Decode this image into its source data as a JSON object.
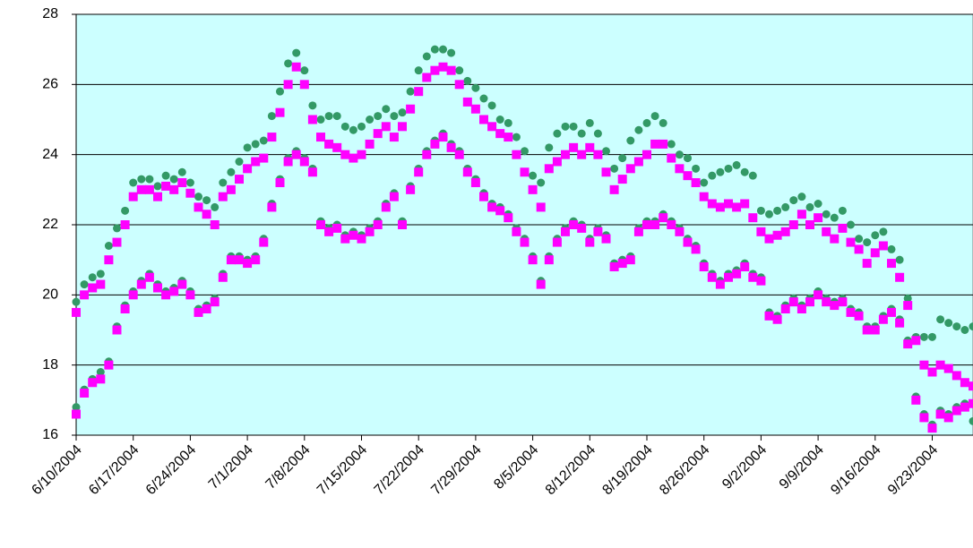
{
  "chart_data": {
    "type": "scatter",
    "x": [
      "6/10/2004",
      "6/10/2004",
      "6/11/2004",
      "6/11/2004",
      "6/12/2004",
      "6/12/2004",
      "6/13/2004",
      "6/13/2004",
      "6/14/2004",
      "6/14/2004",
      "6/15/2004",
      "6/15/2004",
      "6/16/2004",
      "6/16/2004",
      "6/17/2004",
      "6/17/2004",
      "6/18/2004",
      "6/18/2004",
      "6/19/2004",
      "6/19/2004",
      "6/20/2004",
      "6/20/2004",
      "6/21/2004",
      "6/21/2004",
      "6/22/2004",
      "6/22/2004",
      "6/23/2004",
      "6/23/2004",
      "6/24/2004",
      "6/24/2004",
      "6/25/2004",
      "6/25/2004",
      "6/26/2004",
      "6/26/2004",
      "6/27/2004",
      "6/27/2004",
      "6/28/2004",
      "6/28/2004",
      "6/29/2004",
      "6/29/2004",
      "6/30/2004",
      "6/30/2004",
      "7/1/2004",
      "7/1/2004",
      "7/2/2004",
      "7/2/2004",
      "7/3/2004",
      "7/3/2004",
      "7/4/2004",
      "7/4/2004",
      "7/5/2004",
      "7/5/2004",
      "7/6/2004",
      "7/6/2004",
      "7/7/2004",
      "7/7/2004",
      "7/8/2004",
      "7/8/2004",
      "7/9/2004",
      "7/9/2004",
      "7/10/2004",
      "7/10/2004",
      "7/11/2004",
      "7/11/2004",
      "7/12/2004",
      "7/12/2004",
      "7/13/2004",
      "7/13/2004",
      "7/14/2004",
      "7/14/2004",
      "7/15/2004",
      "7/15/2004",
      "7/16/2004",
      "7/16/2004",
      "7/17/2004",
      "7/17/2004",
      "7/18/2004",
      "7/18/2004",
      "7/19/2004",
      "7/19/2004",
      "7/20/2004",
      "7/20/2004",
      "7/21/2004",
      "7/21/2004",
      "7/22/2004",
      "7/22/2004",
      "7/23/2004",
      "7/23/2004",
      "7/24/2004",
      "7/24/2004",
      "7/25/2004",
      "7/25/2004",
      "7/26/2004",
      "7/26/2004",
      "7/27/2004",
      "7/27/2004",
      "7/28/2004",
      "7/28/2004",
      "7/29/2004",
      "7/29/2004",
      "7/30/2004",
      "7/30/2004",
      "7/31/2004",
      "7/31/2004",
      "8/1/2004",
      "8/1/2004",
      "8/2/2004",
      "8/2/2004",
      "8/3/2004",
      "8/3/2004",
      "8/4/2004",
      "8/4/2004",
      "8/5/2004",
      "8/5/2004",
      "8/6/2004",
      "8/6/2004",
      "8/7/2004",
      "8/7/2004",
      "8/8/2004",
      "8/8/2004",
      "8/9/2004",
      "8/9/2004",
      "8/10/2004",
      "8/10/2004",
      "8/11/2004",
      "8/11/2004",
      "8/12/2004",
      "8/12/2004",
      "8/13/2004",
      "8/13/2004",
      "8/14/2004",
      "8/14/2004",
      "8/15/2004",
      "8/15/2004",
      "8/16/2004",
      "8/16/2004",
      "8/17/2004",
      "8/17/2004",
      "8/18/2004",
      "8/18/2004",
      "8/19/2004",
      "8/19/2004",
      "8/20/2004",
      "8/20/2004",
      "8/21/2004",
      "8/21/2004",
      "8/22/2004",
      "8/22/2004",
      "8/23/2004",
      "8/23/2004",
      "8/24/2004",
      "8/24/2004",
      "8/25/2004",
      "8/25/2004",
      "8/26/2004",
      "8/26/2004",
      "8/27/2004",
      "8/27/2004",
      "8/28/2004",
      "8/28/2004",
      "8/29/2004",
      "8/29/2004",
      "8/30/2004",
      "8/30/2004",
      "8/31/2004",
      "8/31/2004",
      "9/1/2004",
      "9/1/2004",
      "9/2/2004",
      "9/2/2004",
      "9/3/2004",
      "9/3/2004",
      "9/4/2004",
      "9/4/2004",
      "9/5/2004",
      "9/5/2004",
      "9/6/2004",
      "9/6/2004",
      "9/7/2004",
      "9/7/2004",
      "9/8/2004",
      "9/8/2004",
      "9/9/2004",
      "9/9/2004",
      "9/10/2004",
      "9/10/2004",
      "9/11/2004",
      "9/11/2004",
      "9/12/2004",
      "9/12/2004",
      "9/13/2004",
      "9/13/2004",
      "9/14/2004",
      "9/14/2004",
      "9/15/2004",
      "9/15/2004",
      "9/16/2004",
      "9/16/2004",
      "9/17/2004",
      "9/17/2004",
      "9/18/2004",
      "9/18/2004",
      "9/19/2004",
      "9/19/2004",
      "9/20/2004",
      "9/20/2004",
      "9/21/2004",
      "9/21/2004",
      "9/22/2004",
      "9/22/2004",
      "9/23/2004",
      "9/23/2004",
      "9/24/2004",
      "9/24/2004",
      "9/25/2004",
      "9/25/2004",
      "9/26/2004",
      "9/26/2004",
      "9/27/2004",
      "9/27/2004",
      "9/28/2004",
      "9/28/2004"
    ],
    "series": [
      {
        "color": "#339966",
        "marker": "circle",
        "values": [
          16.8,
          19.8,
          17.3,
          20.3,
          17.6,
          20.5,
          17.8,
          20.6,
          18.1,
          21.4,
          19.1,
          21.9,
          19.7,
          22.4,
          20.1,
          23.2,
          20.4,
          23.3,
          20.6,
          23.3,
          20.3,
          23.1,
          20.1,
          23.4,
          20.2,
          23.3,
          20.4,
          23.5,
          20.1,
          23.2,
          19.6,
          22.8,
          19.7,
          22.7,
          19.9,
          22.5,
          20.6,
          23.2,
          21.1,
          23.5,
          21.1,
          23.8,
          21,
          24.2,
          21.1,
          24.3,
          21.6,
          24.4,
          22.6,
          25.1,
          23.3,
          25.8,
          23.9,
          26.6,
          24.1,
          26.9,
          23.9,
          26.4,
          23.6,
          25.4,
          22.1,
          25,
          21.9,
          25.1,
          22,
          25.1,
          21.7,
          24.8,
          21.8,
          24.7,
          21.7,
          24.8,
          21.9,
          25,
          22.1,
          25.1,
          22.6,
          25.3,
          22.9,
          25.1,
          22.1,
          25.2,
          23.1,
          25.8,
          23.6,
          26.4,
          24.1,
          26.8,
          24.4,
          27,
          24.6,
          27,
          24.3,
          26.9,
          24.1,
          26.4,
          23.6,
          26.1,
          23.3,
          25.9,
          22.9,
          25.6,
          22.6,
          25.4,
          22.5,
          25,
          22.3,
          24.9,
          21.9,
          24.5,
          21.6,
          24.1,
          21.1,
          23.4,
          20.4,
          23.2,
          21.1,
          24.2,
          21.6,
          24.6,
          21.9,
          24.8,
          22.1,
          24.8,
          22,
          24.6,
          21.6,
          24.9,
          21.9,
          24.6,
          21.7,
          24.1,
          20.9,
          23.6,
          21,
          23.9,
          21.1,
          24.4,
          21.9,
          24.7,
          22.1,
          24.9,
          22.1,
          25.1,
          22.3,
          24.9,
          22.1,
          24.3,
          21.9,
          24,
          21.6,
          23.9,
          21.4,
          23.6,
          20.9,
          23.2,
          20.6,
          23.4,
          20.4,
          23.5,
          20.6,
          23.6,
          20.7,
          23.7,
          20.9,
          23.5,
          20.6,
          23.4,
          20.5,
          22.4,
          19.5,
          22.3,
          19.4,
          22.4,
          19.7,
          22.5,
          19.9,
          22.7,
          19.7,
          22.8,
          19.9,
          22.5,
          20.1,
          22.6,
          19.9,
          22.3,
          19.8,
          22.2,
          19.9,
          22.4,
          19.6,
          22,
          19.5,
          21.6,
          19.1,
          21.5,
          19.1,
          21.7,
          19.4,
          21.8,
          19.6,
          21.3,
          19.3,
          21,
          18.7,
          19.9,
          17.1,
          18.8,
          16.6,
          18.8,
          16.3,
          18.8,
          16.7,
          19.3,
          16.6,
          19.2,
          16.8,
          19.1,
          16.9,
          19,
          16.4,
          19.1
        ]
      },
      {
        "color": "#ff00ff",
        "marker": "square",
        "values": [
          16.6,
          19.5,
          17.2,
          20,
          17.5,
          20.2,
          17.6,
          20.3,
          18,
          21,
          19,
          21.5,
          19.6,
          22,
          20,
          22.8,
          20.3,
          23,
          20.5,
          23,
          20.2,
          22.8,
          20,
          23.1,
          20.1,
          23,
          20.3,
          23.2,
          20,
          22.9,
          19.5,
          22.5,
          19.6,
          22.3,
          19.8,
          22,
          20.5,
          22.8,
          21,
          23,
          21,
          23.3,
          20.9,
          23.6,
          21,
          23.8,
          21.5,
          23.9,
          22.5,
          24.5,
          23.2,
          25.2,
          23.8,
          26,
          24,
          26.5,
          23.8,
          26,
          23.5,
          25,
          22,
          24.5,
          21.8,
          24.3,
          21.9,
          24.2,
          21.6,
          24,
          21.7,
          23.9,
          21.6,
          24,
          21.8,
          24.3,
          22,
          24.6,
          22.5,
          24.8,
          22.8,
          24.5,
          22,
          24.8,
          23,
          25.3,
          23.5,
          25.8,
          24,
          26.2,
          24.3,
          26.4,
          24.5,
          26.5,
          24.2,
          26.4,
          24,
          26,
          23.5,
          25.5,
          23.2,
          25.3,
          22.8,
          25,
          22.5,
          24.8,
          22.4,
          24.6,
          22.2,
          24.5,
          21.8,
          24,
          21.5,
          23.5,
          21,
          23,
          20.3,
          22.5,
          21,
          23.6,
          21.5,
          23.8,
          21.8,
          24,
          22,
          24.2,
          21.9,
          24,
          21.5,
          24.2,
          21.8,
          24,
          21.6,
          23.5,
          20.8,
          23,
          20.9,
          23.3,
          21,
          23.6,
          21.8,
          23.8,
          22,
          24,
          22,
          24.3,
          22.2,
          24.3,
          22,
          23.9,
          21.8,
          23.6,
          21.5,
          23.4,
          21.3,
          23.2,
          20.8,
          22.8,
          20.5,
          22.6,
          20.3,
          22.5,
          20.5,
          22.6,
          20.6,
          22.5,
          20.8,
          22.6,
          20.5,
          22.2,
          20.4,
          21.8,
          19.4,
          21.6,
          19.3,
          21.7,
          19.6,
          21.8,
          19.8,
          22,
          19.6,
          22.3,
          19.8,
          22,
          20,
          22.2,
          19.8,
          21.8,
          19.7,
          21.6,
          19.8,
          21.9,
          19.5,
          21.5,
          19.4,
          21.3,
          19,
          20.9,
          19,
          21.2,
          19.3,
          21.4,
          19.5,
          20.9,
          19.2,
          20.5,
          18.6,
          19.7,
          17,
          18.7,
          16.5,
          18,
          16.2,
          17.8,
          16.6,
          18,
          16.5,
          17.9,
          16.7,
          17.7,
          16.8,
          17.5,
          16.9,
          17.4
        ]
      }
    ],
    "xlim": [
      "6/10/2004",
      "9/28/2004"
    ],
    "xticks": [
      "6/10/2004",
      "6/17/2004",
      "6/24/2004",
      "7/1/2004",
      "7/8/2004",
      "7/15/2004",
      "7/22/2004",
      "7/29/2004",
      "8/5/2004",
      "8/12/2004",
      "8/19/2004",
      "8/26/2004",
      "9/2/2004",
      "9/9/2004",
      "9/16/2004",
      "9/23/2004"
    ],
    "ylim": [
      16,
      28
    ],
    "yticks": [
      16,
      18,
      20,
      22,
      24,
      26,
      28
    ],
    "grid": true,
    "background": "#ccffff"
  }
}
